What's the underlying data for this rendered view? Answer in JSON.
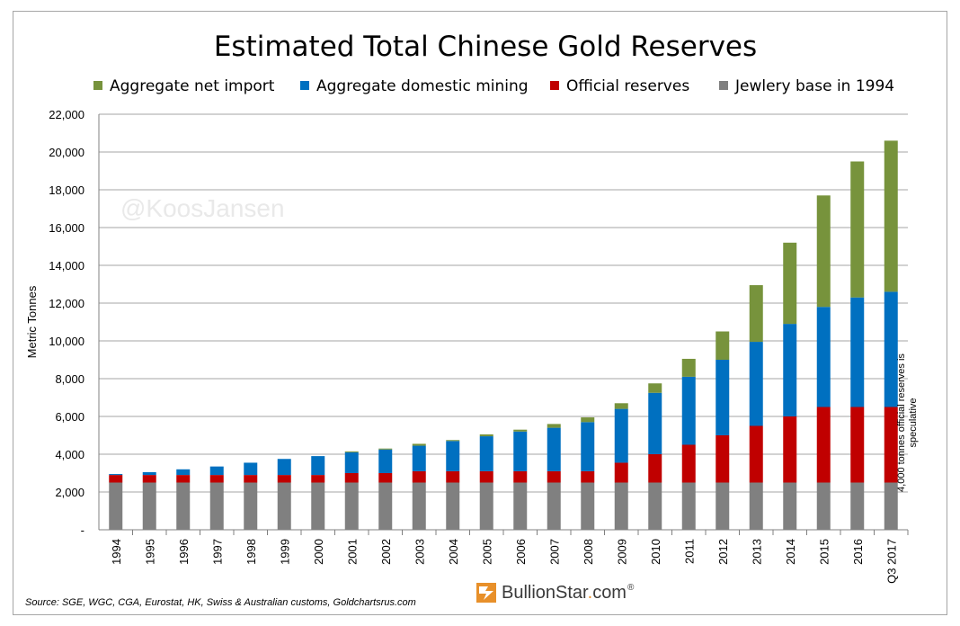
{
  "watermark": "@KoosJansen",
  "side_note": "4,000 tonnes official reserves is speculative",
  "source": "Source: SGE, WGC, CGA, Eurostat, HK, Swiss & Australian customs, Goldchartsrus.com",
  "brand": {
    "name": "BullionStar",
    "dot": ".",
    "tld": "com",
    "reg": "®"
  },
  "colors": {
    "net_import": "#77933c",
    "domestic_mining": "#0070c0",
    "official_reserves": "#c00000",
    "jewelry_base": "#808080",
    "grid": "#a6a6a6",
    "brand_accent": "#e8902a"
  },
  "chart_data": {
    "type": "bar",
    "stacked": true,
    "title": "Estimated Total Chinese Gold Reserves",
    "xlabel": "",
    "ylabel": "Metric Tonnes",
    "ylim": [
      0,
      22000
    ],
    "yticks": [
      0,
      2000,
      4000,
      6000,
      8000,
      10000,
      12000,
      14000,
      16000,
      18000,
      20000,
      22000
    ],
    "ytick_labels": [
      "-",
      "2,000",
      "4,000",
      "6,000",
      "8,000",
      "10,000",
      "12,000",
      "14,000",
      "16,000",
      "18,000",
      "20,000",
      "22,000"
    ],
    "grid": true,
    "legend_position": "top",
    "categories": [
      "1994",
      "1995",
      "1996",
      "1997",
      "1998",
      "1999",
      "2000",
      "2001",
      "2002",
      "2003",
      "2004",
      "2005",
      "2006",
      "2007",
      "2008",
      "2009",
      "2010",
      "2011",
      "2012",
      "2013",
      "2014",
      "2015",
      "2016",
      "Q3 2017"
    ],
    "series": [
      {
        "name": "Jewlery base in 1994",
        "color": "#808080",
        "values": [
          2500,
          2500,
          2500,
          2500,
          2500,
          2500,
          2500,
          2500,
          2500,
          2500,
          2500,
          2500,
          2500,
          2500,
          2500,
          2500,
          2500,
          2500,
          2500,
          2500,
          2500,
          2500,
          2500,
          2500
        ]
      },
      {
        "name": "Official reserves",
        "color": "#c00000",
        "values": [
          400,
          400,
          400,
          400,
          400,
          400,
          400,
          500,
          500,
          600,
          600,
          600,
          600,
          600,
          600,
          1050,
          1500,
          2000,
          2500,
          3000,
          3500,
          4000,
          4000,
          4000
        ]
      },
      {
        "name": "Aggregate domestic mining",
        "color": "#0070c0",
        "values": [
          50,
          150,
          300,
          450,
          650,
          850,
          1000,
          1100,
          1250,
          1350,
          1600,
          1850,
          2100,
          2300,
          2600,
          2850,
          3250,
          3600,
          4000,
          4450,
          4900,
          5300,
          5800,
          6100
        ]
      },
      {
        "name": "Aggregate net import",
        "color": "#77933c",
        "values": [
          0,
          0,
          0,
          0,
          0,
          0,
          0,
          50,
          50,
          100,
          50,
          100,
          100,
          200,
          250,
          300,
          500,
          950,
          1500,
          3000,
          4300,
          5900,
          7200,
          8000
        ]
      }
    ],
    "legend_order": [
      "Aggregate net import",
      "Aggregate domestic mining",
      "Official reserves",
      "Jewlery base in 1994"
    ]
  }
}
